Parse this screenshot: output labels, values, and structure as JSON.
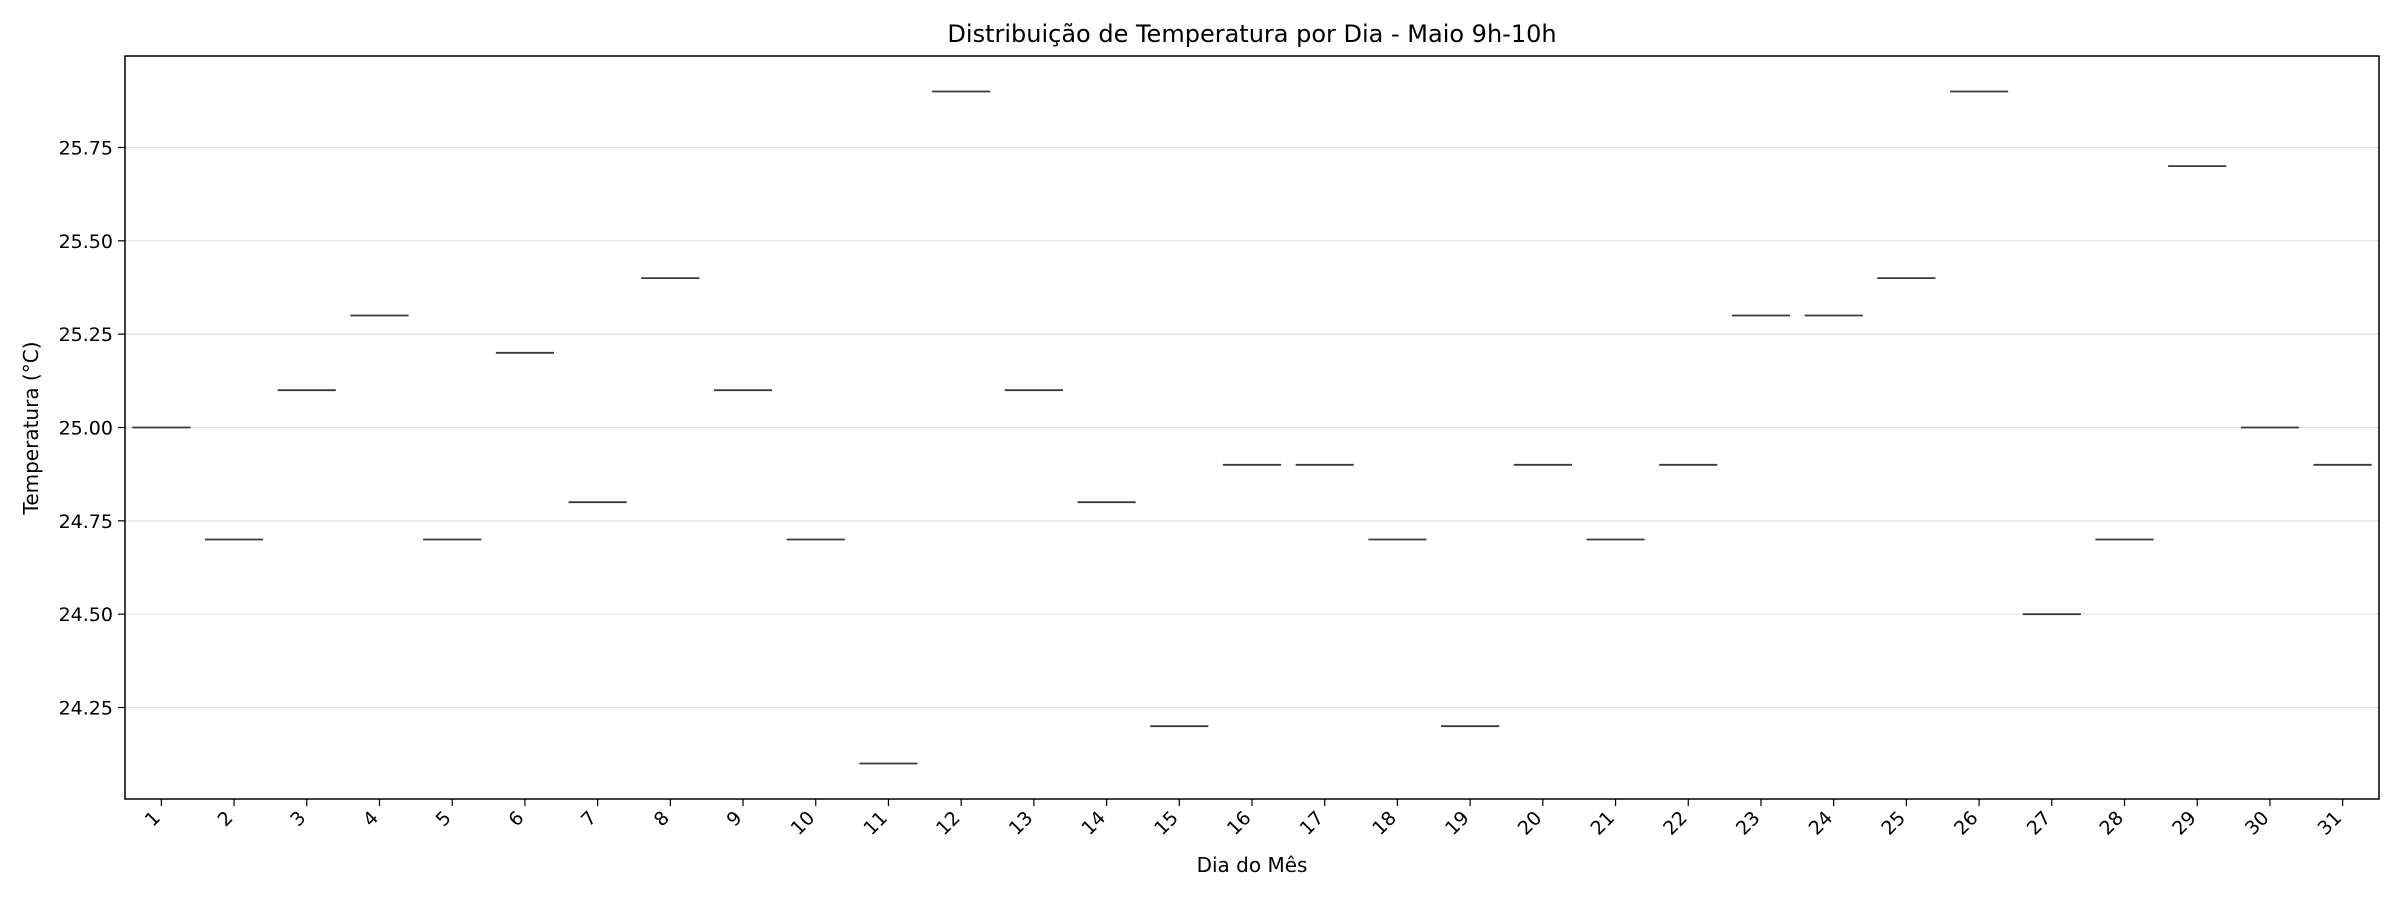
{
  "chart_data": {
    "type": "box",
    "title": "Distribuição de Temperatura por Dia - Maio 9h-10h",
    "xlabel": "Dia do Mês",
    "ylabel": "Temperatura (°C)",
    "categories": [
      "1",
      "2",
      "3",
      "4",
      "5",
      "6",
      "7",
      "8",
      "9",
      "10",
      "11",
      "12",
      "13",
      "14",
      "15",
      "16",
      "17",
      "18",
      "19",
      "20",
      "21",
      "22",
      "23",
      "24",
      "25",
      "26",
      "27",
      "28",
      "29",
      "30",
      "31"
    ],
    "values": [
      25.0,
      24.7,
      25.1,
      25.3,
      24.7,
      25.2,
      24.8,
      25.4,
      25.1,
      24.7,
      24.1,
      25.9,
      25.1,
      24.8,
      24.2,
      24.9,
      24.9,
      24.7,
      24.2,
      24.9,
      24.7,
      24.9,
      25.3,
      25.3,
      25.4,
      25.9,
      24.5,
      24.7,
      25.7,
      25.0,
      24.9
    ],
    "ylim": [
      24.005,
      25.995
    ],
    "yticks": [
      "24.25",
      "24.50",
      "24.75",
      "25.00",
      "25.25",
      "25.50",
      "25.75"
    ],
    "grid": "y",
    "legend": "none"
  }
}
